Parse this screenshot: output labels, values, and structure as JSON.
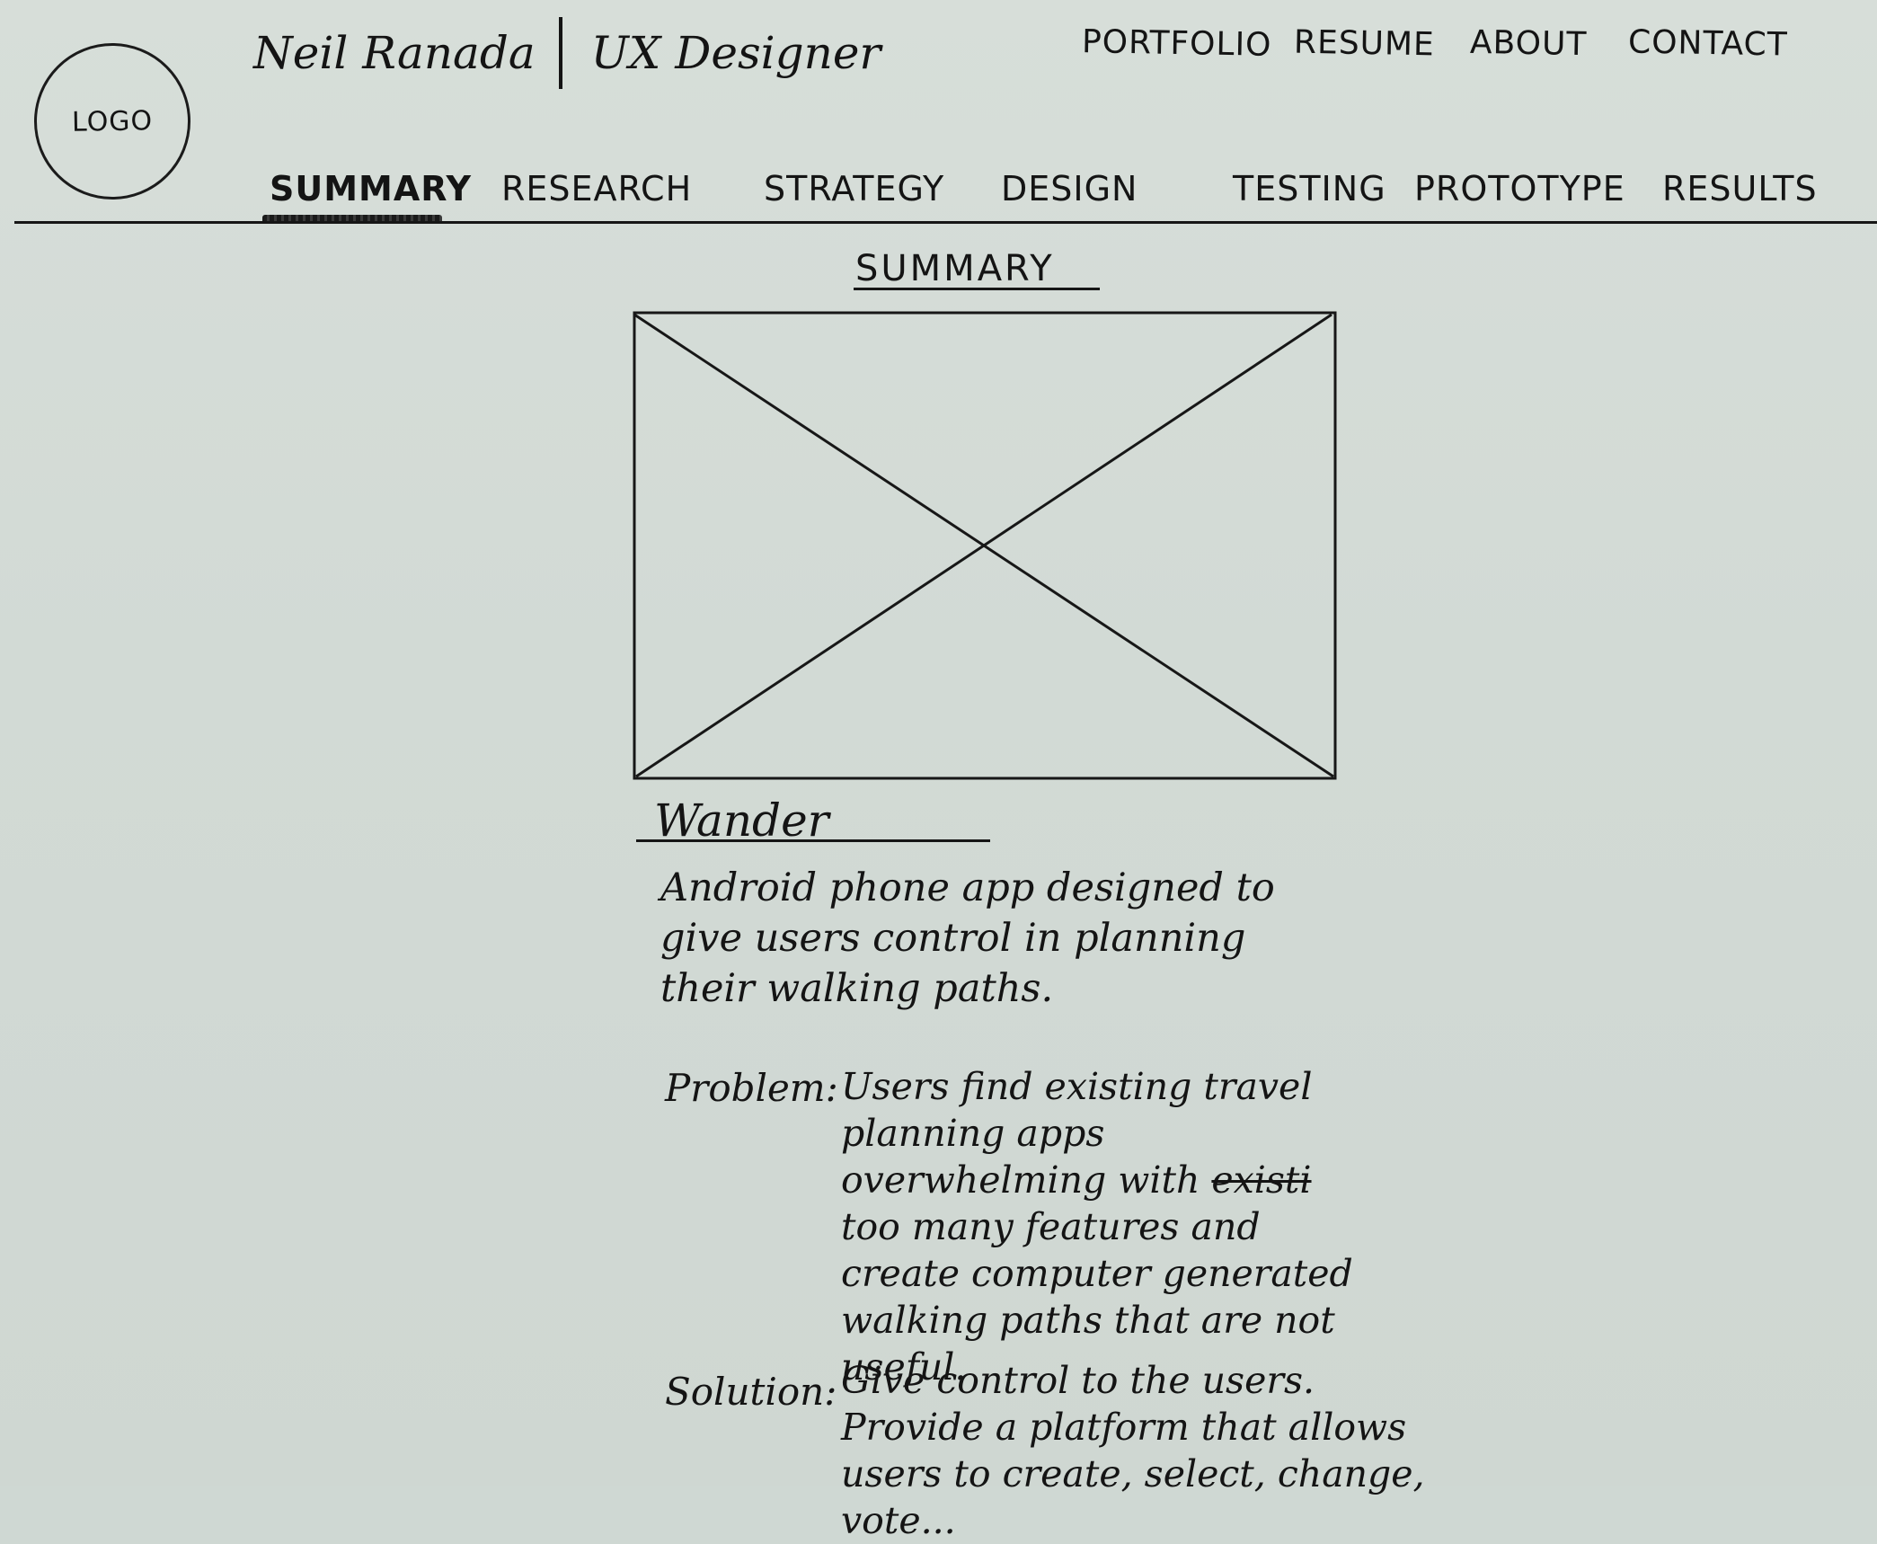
{
  "header": {
    "logo_label": "LOGO",
    "name": "Neil Ranada",
    "role": "UX Designer",
    "top_nav": [
      "PORTFOLIO",
      "RESUME",
      "ABOUT",
      "CONTACT"
    ],
    "section_nav": [
      "SUMMARY",
      "RESEARCH",
      "STRATEGY",
      "DESIGN",
      "TESTING",
      "PROTOTYPE",
      "RESULTS"
    ],
    "active_section": "SUMMARY"
  },
  "main": {
    "section_title": "SUMMARY",
    "project_title": "Wander",
    "description": "Android phone app designed to give users control in planning their walking paths.",
    "problem": {
      "label": "Problem:",
      "text_before_strike": "Users find existing travel planning apps overwhelming with ",
      "struck_text": "existi",
      "text_after_strike": " too many features and create computer generated walking paths that are not useful."
    },
    "solution": {
      "label": "Solution:",
      "text": "Give control to the users. Provide a platform that allows users to create, select, change, vote..."
    }
  }
}
